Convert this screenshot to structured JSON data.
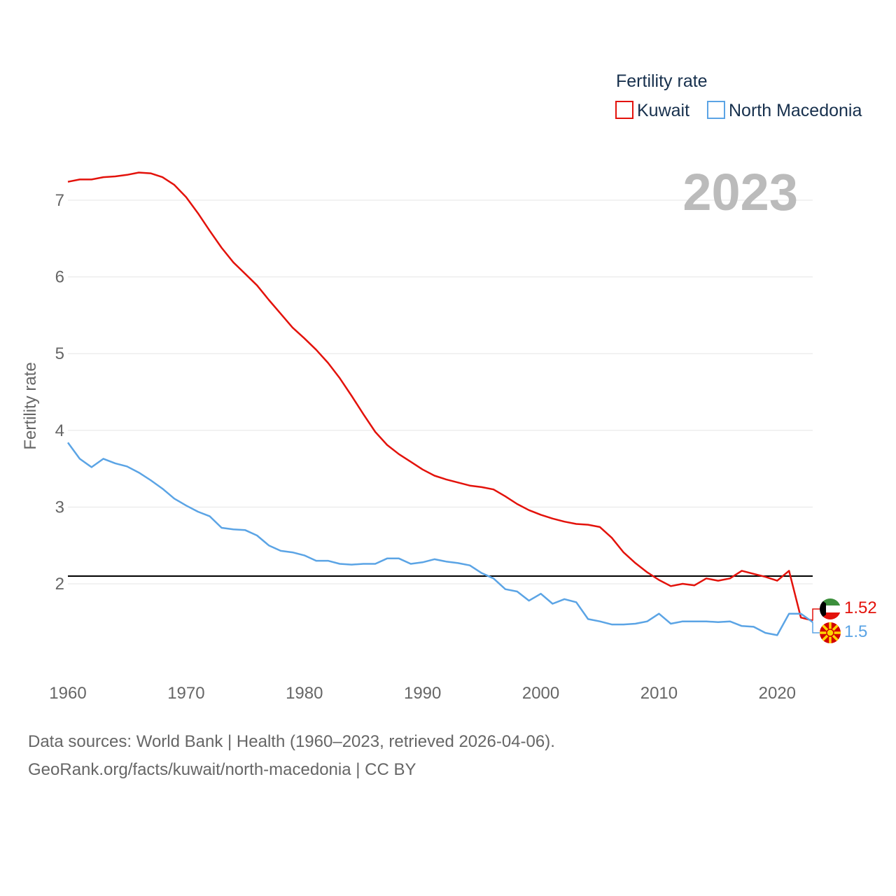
{
  "chart_data": {
    "type": "line",
    "title": "Fertility rate",
    "year_label": "2023",
    "xlabel": "",
    "ylabel": "Fertility rate",
    "xlim": [
      1960,
      2023
    ],
    "ylim": [
      0.8,
      7.7
    ],
    "x_ticks": [
      1960,
      1970,
      1980,
      1990,
      2000,
      2010,
      2020
    ],
    "y_ticks": [
      2,
      3,
      4,
      5,
      6,
      7
    ],
    "reference_line": {
      "value": 2.1,
      "color": "#000000"
    },
    "legend_position": "top-right",
    "series": [
      {
        "name": "Kuwait",
        "color": "#e3120b",
        "end_label": "1.52",
        "x": [
          1960,
          1961,
          1962,
          1963,
          1964,
          1965,
          1966,
          1967,
          1968,
          1969,
          1970,
          1971,
          1972,
          1973,
          1974,
          1975,
          1976,
          1977,
          1978,
          1979,
          1980,
          1981,
          1982,
          1983,
          1984,
          1985,
          1986,
          1987,
          1988,
          1989,
          1990,
          1991,
          1992,
          1993,
          1994,
          1995,
          1996,
          1997,
          1998,
          1999,
          2000,
          2001,
          2002,
          2003,
          2004,
          2005,
          2006,
          2007,
          2008,
          2009,
          2010,
          2011,
          2012,
          2013,
          2014,
          2015,
          2016,
          2017,
          2018,
          2019,
          2020,
          2021,
          2022,
          2023
        ],
        "values": [
          7.24,
          7.27,
          7.27,
          7.3,
          7.31,
          7.33,
          7.36,
          7.35,
          7.3,
          7.2,
          7.04,
          6.83,
          6.6,
          6.38,
          6.19,
          6.04,
          5.89,
          5.7,
          5.52,
          5.34,
          5.2,
          5.05,
          4.88,
          4.68,
          4.45,
          4.21,
          3.98,
          3.81,
          3.69,
          3.59,
          3.49,
          3.41,
          3.36,
          3.32,
          3.28,
          3.26,
          3.23,
          3.14,
          3.04,
          2.96,
          2.9,
          2.85,
          2.81,
          2.78,
          2.77,
          2.74,
          2.6,
          2.41,
          2.27,
          2.15,
          2.05,
          1.97,
          2.0,
          1.98,
          2.07,
          2.04,
          2.07,
          2.17,
          2.13,
          2.09,
          2.04,
          2.17,
          1.56,
          1.52
        ]
      },
      {
        "name": "North Macedonia",
        "color": "#5ba4e5",
        "end_label": "1.5",
        "x": [
          1960,
          1961,
          1962,
          1963,
          1964,
          1965,
          1966,
          1967,
          1968,
          1969,
          1970,
          1971,
          1972,
          1973,
          1974,
          1975,
          1976,
          1977,
          1978,
          1979,
          1980,
          1981,
          1982,
          1983,
          1984,
          1985,
          1986,
          1987,
          1988,
          1989,
          1990,
          1991,
          1992,
          1993,
          1994,
          1995,
          1996,
          1997,
          1998,
          1999,
          2000,
          2001,
          2002,
          2003,
          2004,
          2005,
          2006,
          2007,
          2008,
          2009,
          2010,
          2011,
          2012,
          2013,
          2014,
          2015,
          2016,
          2017,
          2018,
          2019,
          2020,
          2021,
          2022,
          2023
        ],
        "values": [
          3.84,
          3.63,
          3.52,
          3.63,
          3.57,
          3.53,
          3.45,
          3.35,
          3.24,
          3.11,
          3.02,
          2.94,
          2.88,
          2.73,
          2.71,
          2.7,
          2.63,
          2.5,
          2.43,
          2.41,
          2.37,
          2.3,
          2.3,
          2.26,
          2.25,
          2.26,
          2.26,
          2.33,
          2.33,
          2.26,
          2.28,
          2.32,
          2.29,
          2.27,
          2.24,
          2.14,
          2.07,
          1.93,
          1.9,
          1.78,
          1.87,
          1.74,
          1.8,
          1.76,
          1.54,
          1.51,
          1.47,
          1.47,
          1.48,
          1.51,
          1.61,
          1.48,
          1.51,
          1.51,
          1.51,
          1.5,
          1.51,
          1.45,
          1.44,
          1.36,
          1.33,
          1.61,
          1.61,
          1.5
        ]
      }
    ]
  },
  "source": {
    "line1": "Data sources: World Bank | Health (1960–2023, retrieved 2026-04-06).",
    "line2": "GeoRank.org/facts/kuwait/north-macedonia | CC BY"
  }
}
